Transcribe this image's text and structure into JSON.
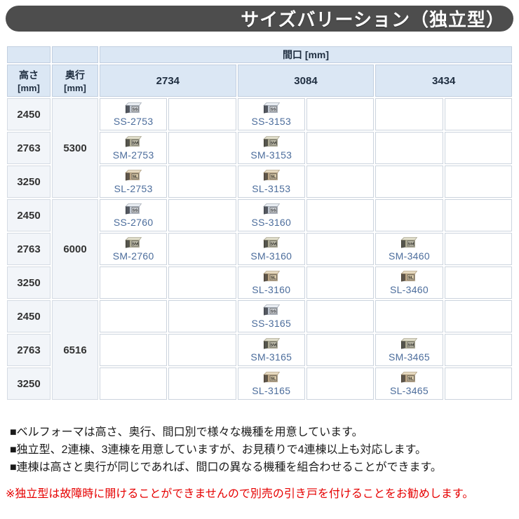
{
  "title": "サイズバリーション（独立型）",
  "table": {
    "span_header": "間口 [mm]",
    "height_header": {
      "label": "高さ",
      "unit": "[mm]"
    },
    "depth_header": {
      "label": "奥行",
      "unit": "[mm]"
    },
    "width_columns": [
      "2734",
      "3084",
      "3434"
    ],
    "depth_groups": [
      {
        "depth": "5300",
        "rows": [
          {
            "height": "2450",
            "cells": [
              "SS-2753",
              "SS-3153",
              null
            ]
          },
          {
            "height": "2763",
            "cells": [
              "SM-2753",
              "SM-3153",
              null
            ]
          },
          {
            "height": "3250",
            "cells": [
              "SL-2753",
              "SL-3153",
              null
            ]
          }
        ]
      },
      {
        "depth": "6000",
        "rows": [
          {
            "height": "2450",
            "cells": [
              "SS-2760",
              "SS-3160",
              null
            ]
          },
          {
            "height": "2763",
            "cells": [
              "SM-2760",
              "SM-3160",
              "SM-3460"
            ]
          },
          {
            "height": "3250",
            "cells": [
              null,
              "SL-3160",
              "SL-3460"
            ]
          }
        ]
      },
      {
        "depth": "6516",
        "rows": [
          {
            "height": "2450",
            "cells": [
              null,
              "SS-3165",
              null
            ]
          },
          {
            "height": "2763",
            "cells": [
              null,
              "SM-3165",
              "SM-3465"
            ]
          },
          {
            "height": "3250",
            "cells": [
              null,
              "SL-3165",
              "SL-3465"
            ]
          }
        ]
      }
    ]
  },
  "icons": {
    "SS": {
      "label": "SS",
      "top": "#e9edf2",
      "front": "#ccd3dc",
      "side": "#3c4148",
      "plate": "#e3e7ec",
      "outline": "#8a929e"
    },
    "SM": {
      "label": "SM",
      "top": "#dedbc8",
      "front": "#b7b49e",
      "side": "#3e3c30",
      "plate": "#d8d5c0",
      "outline": "#8f8c74"
    },
    "SL": {
      "label": "SL",
      "top": "#e6d9c0",
      "front": "#c4ae8e",
      "side": "#4a3d2e",
      "plate": "#dbcba9",
      "outline": "#9a8868"
    }
  },
  "notes": [
    "■ベルフォーマは高さ、奥行、間口別で様々な機種を用意しています。",
    "■独立型、2連棟、3連棟を用意していますが、お見積りで4連棟以上も対応します。",
    "■連棟は高さと奥行が同じであれば、間口の異なる機種を組合わせることができます。"
  ],
  "warning": "※独立型は故障時に開けることができませんので別売の引き戸を付けることをお勧めします。",
  "colors": {
    "title_bar": "#4d4d4d",
    "header_bg": "#dbe7f4",
    "label_bg": "#f2f5f9",
    "link_blue": "#4c6d9c",
    "warning_red": "#e60000"
  }
}
